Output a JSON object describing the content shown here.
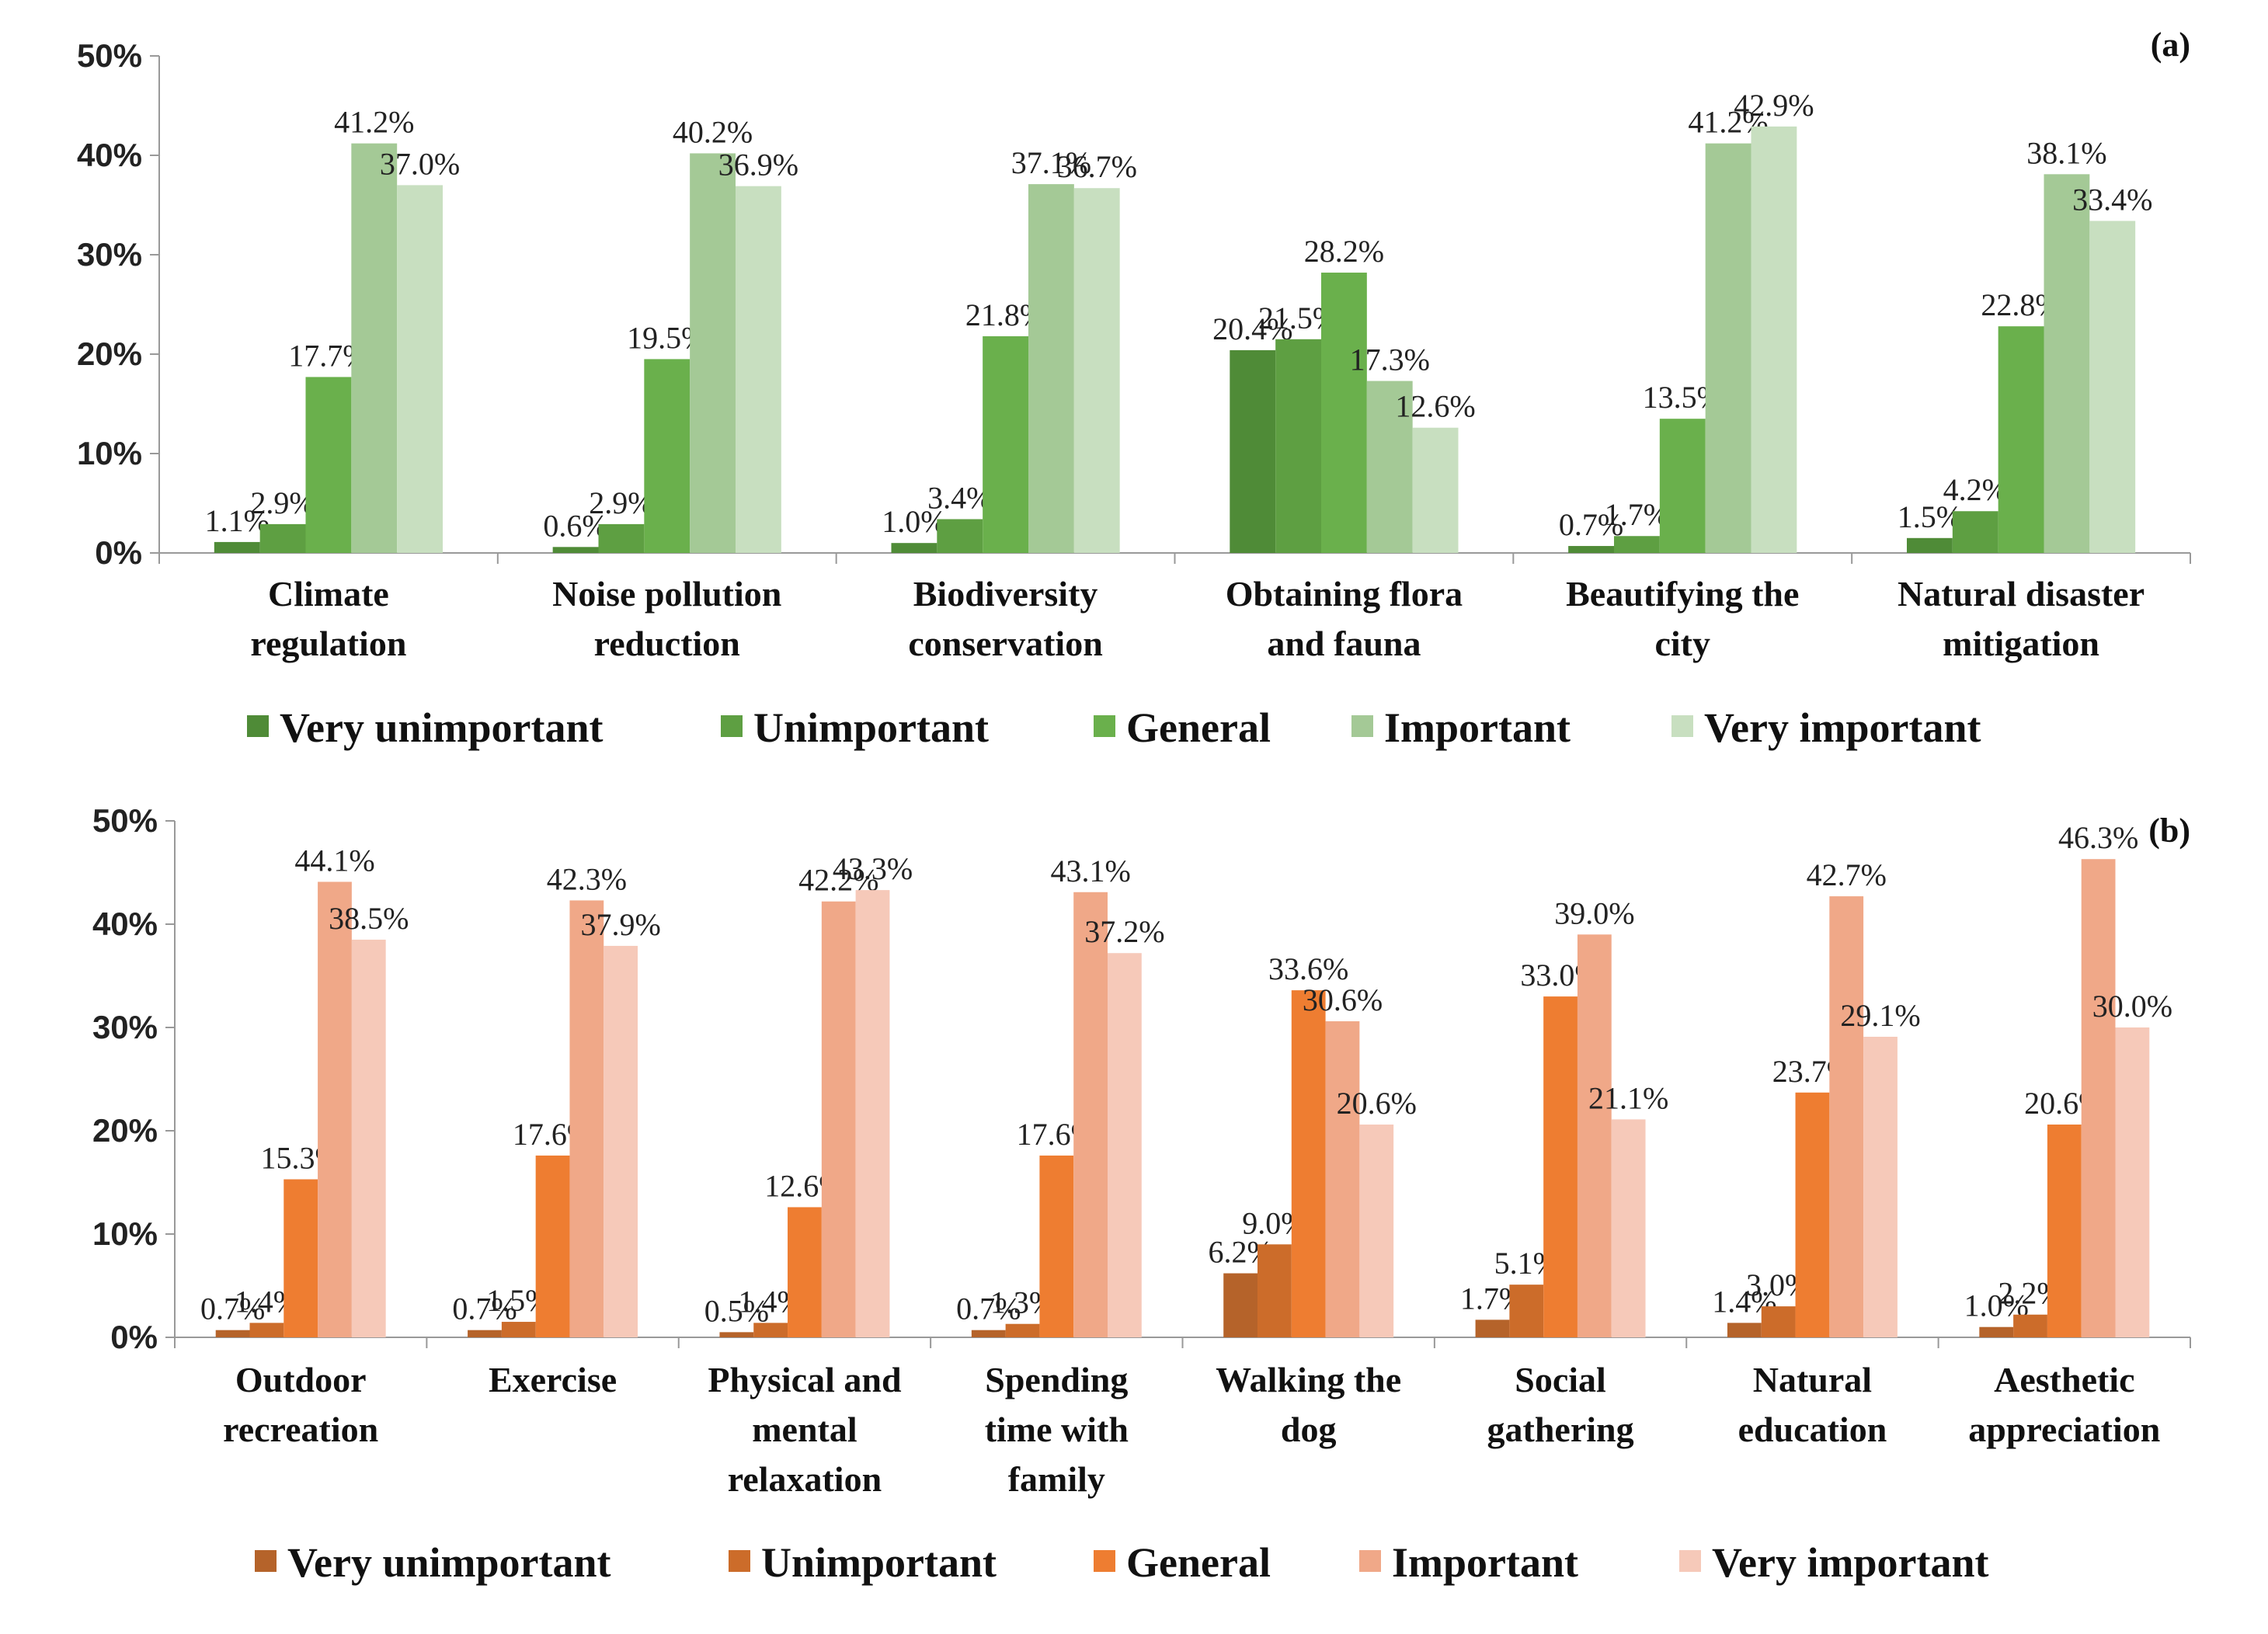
{
  "chart_data": [
    {
      "type": "bar",
      "panel_label": "(a)",
      "categories": [
        [
          "Climate",
          "regulation"
        ],
        [
          "Noise pollution",
          "reduction"
        ],
        [
          "Biodiversity",
          "conservation"
        ],
        [
          "Obtaining flora",
          "and fauna"
        ],
        [
          "Beautifying the",
          "city"
        ],
        [
          "Natural disaster",
          "mitigation"
        ]
      ],
      "series": [
        {
          "name": "Very unimportant",
          "color": "#4f8b37",
          "values": [
            1.1,
            0.6,
            1.0,
            20.4,
            0.7,
            1.5
          ],
          "labels": [
            "1.1%",
            "0.6%",
            "1.0%",
            "20.4%",
            "0.7%",
            "1.5%"
          ]
        },
        {
          "name": "Unimportant",
          "color": "#5e9f42",
          "values": [
            2.9,
            2.9,
            3.4,
            21.5,
            1.7,
            4.2
          ],
          "labels": [
            "2.9%",
            "2.9%",
            "3.4%",
            "21.5%",
            "1.7%",
            "4.2%"
          ]
        },
        {
          "name": "General",
          "color": "#6ab04c",
          "values": [
            17.7,
            19.5,
            21.8,
            28.2,
            13.5,
            22.8
          ],
          "labels": [
            "17.7%",
            "19.5%",
            "21.8%",
            "28.2%",
            "13.5%",
            "22.8%"
          ]
        },
        {
          "name": "Important",
          "color": "#a4c996",
          "values": [
            41.2,
            40.2,
            37.1,
            17.3,
            41.2,
            38.1
          ],
          "labels": [
            "41.2%",
            "40.2%",
            "37.1%",
            "17.3%",
            "41.2%",
            "38.1%"
          ]
        },
        {
          "name": "Very important",
          "color": "#c8dfc0",
          "values": [
            37.0,
            36.9,
            36.7,
            12.6,
            42.9,
            33.4
          ],
          "labels": [
            "37.0%",
            "36.9%",
            "36.7%",
            "12.6%",
            "42.9%",
            "33.4%"
          ]
        }
      ],
      "ylim": [
        0,
        50
      ],
      "yticks": [
        "0%",
        "10%",
        "20%",
        "30%",
        "40%",
        "50%"
      ],
      "xlabel": "",
      "ylabel": ""
    },
    {
      "type": "bar",
      "panel_label": "(b)",
      "categories": [
        [
          "Outdoor",
          "recreation"
        ],
        [
          "Exercise"
        ],
        [
          "Physical and",
          "mental",
          "relaxation"
        ],
        [
          "Spending",
          "time with",
          "family"
        ],
        [
          "Walking the",
          "dog"
        ],
        [
          "Social",
          "gathering"
        ],
        [
          "Natural",
          "education"
        ],
        [
          "Aesthetic",
          "appreciation"
        ]
      ],
      "series": [
        {
          "name": "Very unimportant",
          "color": "#b5632a",
          "values": [
            0.7,
            0.7,
            0.5,
            0.7,
            6.2,
            1.7,
            1.4,
            1.0
          ],
          "labels": [
            "0.7%",
            "0.7%",
            "0.5%",
            "0.7%",
            "6.2%",
            "1.7%",
            "1.4%",
            "1.0%"
          ]
        },
        {
          "name": "Unimportant",
          "color": "#cc6c2a",
          "values": [
            1.4,
            1.5,
            1.4,
            1.3,
            9.0,
            5.1,
            3.0,
            2.2
          ],
          "labels": [
            "1.4%",
            "1.5%",
            "1.4%",
            "1.3%",
            "9.0%",
            "5.1%",
            "3.0%",
            "2.2%"
          ]
        },
        {
          "name": "General",
          "color": "#ee7d31",
          "values": [
            15.3,
            17.6,
            12.6,
            17.6,
            33.6,
            33.0,
            23.7,
            20.6
          ],
          "labels": [
            "15.3%",
            "17.6%",
            "12.6%",
            "17.6%",
            "33.6%",
            "33.0%",
            "23.7%",
            "20.6%"
          ]
        },
        {
          "name": "Important",
          "color": "#f0a888",
          "values": [
            44.1,
            42.3,
            42.2,
            43.1,
            30.6,
            39.0,
            42.7,
            46.3
          ],
          "labels": [
            "44.1%",
            "42.3%",
            "42.2%",
            "43.1%",
            "30.6%",
            "39.0%",
            "42.7%",
            "46.3%"
          ]
        },
        {
          "name": "Very important",
          "color": "#f6c9b9",
          "values": [
            38.5,
            37.9,
            43.3,
            37.2,
            20.6,
            21.1,
            29.1,
            30.0
          ],
          "labels": [
            "38.5%",
            "37.9%",
            "43.3%",
            "37.2%",
            "20.6%",
            "21.1%",
            "29.1%",
            "30.0%"
          ]
        }
      ],
      "ylim": [
        0,
        50
      ],
      "yticks": [
        "0%",
        "10%",
        "20%",
        "30%",
        "40%",
        "50%"
      ],
      "xlabel": "",
      "ylabel": ""
    }
  ]
}
